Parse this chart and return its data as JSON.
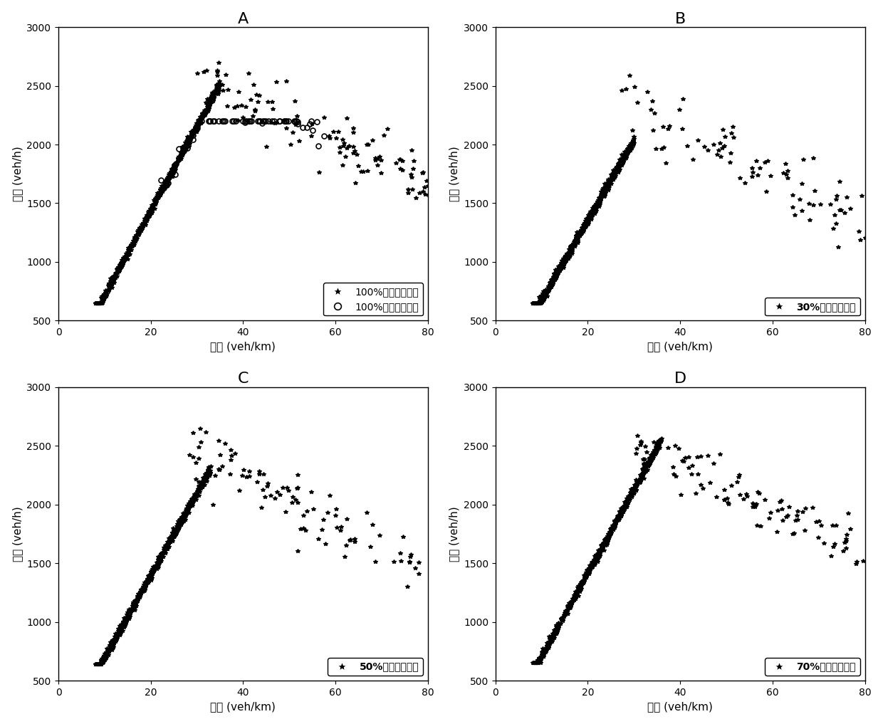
{
  "panels": [
    "A",
    "B",
    "C",
    "D"
  ],
  "xlim": [
    0,
    80
  ],
  "ylim": [
    500,
    3000
  ],
  "xticks": [
    0,
    20,
    40,
    60,
    80
  ],
  "yticks": [
    500,
    1000,
    1500,
    2000,
    2500,
    3000
  ],
  "xlabel": "密度 (veh/km)",
  "ylabel": "流量 (veh/h)",
  "legend_labels": {
    "A_star": "100%自动驾驶车辆",
    "A_circle": "100%人工驾驶车辆",
    "B": "30%自动驾驶车辆",
    "C": "50%自动驾驶车辆",
    "D": "70%自动驾驶车辆"
  },
  "star_color": "#000000",
  "circle_color": "#000000",
  "background": "#ffffff"
}
